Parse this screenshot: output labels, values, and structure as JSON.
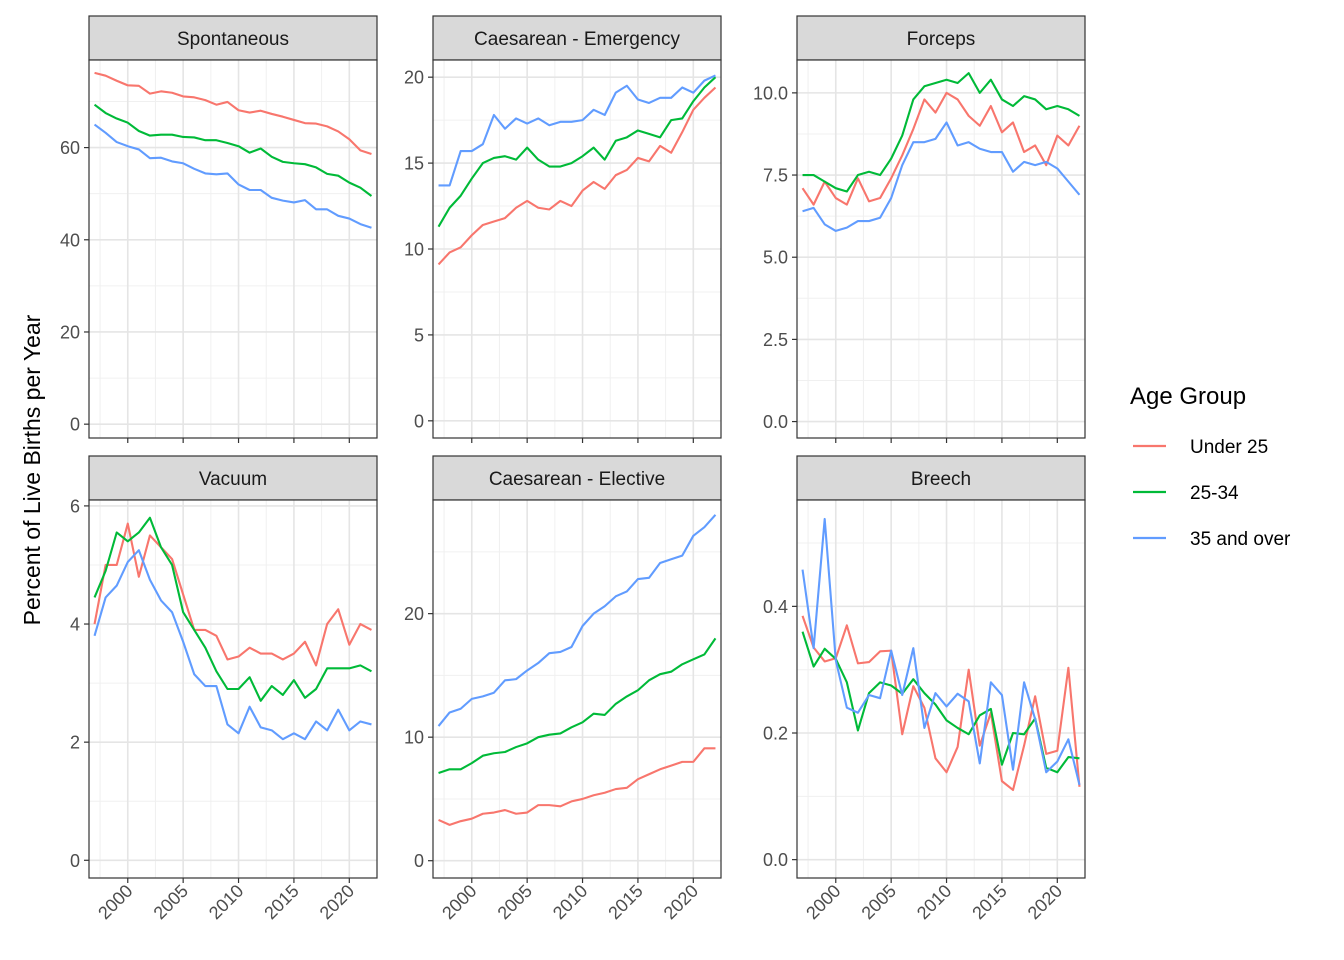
{
  "chart_data": {
    "type": "line",
    "ylabel": "Percent of Live Births per Year",
    "xlim": [
      1996.5,
      2022.5
    ],
    "x_ticks": [
      2000,
      2005,
      2010,
      2015,
      2020
    ],
    "legend": {
      "title": "Age Group",
      "placement": "right"
    },
    "colors": {
      "Under 25": "#F8766D",
      "25-34": "#00BA38",
      "35 and over": "#619CFF"
    },
    "panels": [
      {
        "title": "Spontaneous",
        "ylim": [
          -3,
          79
        ],
        "y_ticks": [
          0,
          20,
          40,
          60
        ],
        "years": [
          1997,
          1998,
          1999,
          2000,
          2001,
          2002,
          2003,
          2004,
          2005,
          2006,
          2007,
          2008,
          2009,
          2010,
          2011,
          2012,
          2013,
          2014,
          2015,
          2016,
          2017,
          2018,
          2019,
          2020,
          2021,
          2022
        ],
        "series": [
          {
            "name": "Under 25",
            "values": [
              76.2,
              75.6,
              74.5,
              73.5,
              73.4,
              71.7,
              72.2,
              71.9,
              71.1,
              70.9,
              70.3,
              69.3,
              69.9,
              68.1,
              67.6,
              68.0,
              67.3,
              66.7,
              66.0,
              65.3,
              65.2,
              64.6,
              63.5,
              61.8,
              59.4,
              58.6
            ]
          },
          {
            "name": "25-34",
            "values": [
              69.3,
              67.5,
              66.3,
              65.4,
              63.6,
              62.6,
              62.8,
              62.8,
              62.3,
              62.2,
              61.6,
              61.6,
              61.0,
              60.3,
              58.9,
              59.8,
              58.0,
              56.9,
              56.6,
              56.4,
              55.7,
              54.3,
              53.9,
              52.4,
              51.3,
              49.5
            ]
          },
          {
            "name": "35 and over",
            "values": [
              65.0,
              63.2,
              61.2,
              60.3,
              59.6,
              57.7,
              57.8,
              57.0,
              56.6,
              55.4,
              54.4,
              54.2,
              54.4,
              52.0,
              50.8,
              50.8,
              49.1,
              48.5,
              48.1,
              48.6,
              46.6,
              46.6,
              45.2,
              44.6,
              43.4,
              42.6
            ]
          }
        ]
      },
      {
        "title": "Caesarean - Emergency",
        "ylim": [
          -1,
          21
        ],
        "y_ticks": [
          0,
          5,
          10,
          15,
          20
        ],
        "years": [
          1997,
          1998,
          1999,
          2000,
          2001,
          2002,
          2003,
          2004,
          2005,
          2006,
          2007,
          2008,
          2009,
          2010,
          2011,
          2012,
          2013,
          2014,
          2015,
          2016,
          2017,
          2018,
          2019,
          2020,
          2021,
          2022
        ],
        "series": [
          {
            "name": "Under 25",
            "values": [
              9.1,
              9.8,
              10.1,
              10.8,
              11.4,
              11.6,
              11.8,
              12.4,
              12.8,
              12.4,
              12.3,
              12.8,
              12.5,
              13.4,
              13.9,
              13.5,
              14.3,
              14.6,
              15.3,
              15.1,
              16.0,
              15.6,
              16.8,
              18.1,
              18.8,
              19.4
            ]
          },
          {
            "name": "25-34",
            "values": [
              11.3,
              12.4,
              13.1,
              14.1,
              15.0,
              15.3,
              15.4,
              15.2,
              15.9,
              15.2,
              14.8,
              14.8,
              15.0,
              15.4,
              15.9,
              15.2,
              16.3,
              16.5,
              16.9,
              16.7,
              16.5,
              17.5,
              17.6,
              18.6,
              19.4,
              20.0
            ]
          },
          {
            "name": "35 and over",
            "values": [
              13.7,
              13.7,
              15.7,
              15.7,
              16.1,
              17.8,
              17.0,
              17.6,
              17.3,
              17.6,
              17.2,
              17.4,
              17.4,
              17.5,
              18.1,
              17.8,
              19.1,
              19.5,
              18.7,
              18.5,
              18.8,
              18.8,
              19.4,
              19.1,
              19.8,
              20.1
            ]
          }
        ]
      },
      {
        "title": "Forceps",
        "ylim": [
          -0.5,
          11.0
        ],
        "y_ticks": [
          0.0,
          2.5,
          5.0,
          7.5,
          10.0
        ],
        "y_tick_labels": [
          "0.0",
          "2.5",
          "5.0",
          "7.5",
          "10.0"
        ],
        "years": [
          1997,
          1998,
          1999,
          2000,
          2001,
          2002,
          2003,
          2004,
          2005,
          2006,
          2007,
          2008,
          2009,
          2010,
          2011,
          2012,
          2013,
          2014,
          2015,
          2016,
          2017,
          2018,
          2019,
          2020,
          2021,
          2022
        ],
        "series": [
          {
            "name": "Under 25",
            "values": [
              7.1,
              6.6,
              7.3,
              6.8,
              6.6,
              7.4,
              6.7,
              6.8,
              7.4,
              8.1,
              8.9,
              9.8,
              9.4,
              10.0,
              9.8,
              9.3,
              9.0,
              9.6,
              8.8,
              9.1,
              8.2,
              8.4,
              7.8,
              8.7,
              8.4,
              9.0
            ]
          },
          {
            "name": "25-34",
            "values": [
              7.5,
              7.5,
              7.3,
              7.1,
              7.0,
              7.5,
              7.6,
              7.5,
              8.0,
              8.7,
              9.8,
              10.2,
              10.3,
              10.4,
              10.3,
              10.6,
              10.0,
              10.4,
              9.8,
              9.6,
              9.9,
              9.8,
              9.5,
              9.6,
              9.5,
              9.3
            ]
          },
          {
            "name": "35 and over",
            "values": [
              6.4,
              6.5,
              6.0,
              5.8,
              5.9,
              6.1,
              6.1,
              6.2,
              6.8,
              7.8,
              8.5,
              8.5,
              8.6,
              9.1,
              8.4,
              8.5,
              8.3,
              8.2,
              8.2,
              7.6,
              7.9,
              7.8,
              7.9,
              7.7,
              7.3,
              6.9
            ]
          }
        ]
      },
      {
        "title": "Vacuum",
        "ylim": [
          -0.3,
          6.1
        ],
        "y_ticks": [
          0,
          2,
          4,
          6
        ],
        "years": [
          1997,
          1998,
          1999,
          2000,
          2001,
          2002,
          2003,
          2004,
          2005,
          2006,
          2007,
          2008,
          2009,
          2010,
          2011,
          2012,
          2013,
          2014,
          2015,
          2016,
          2017,
          2018,
          2019,
          2020,
          2021,
          2022
        ],
        "series": [
          {
            "name": "Under 25",
            "values": [
              4.0,
              5.0,
              5.0,
              5.7,
              4.8,
              5.5,
              5.3,
              5.1,
              4.5,
              3.9,
              3.9,
              3.8,
              3.4,
              3.45,
              3.6,
              3.5,
              3.5,
              3.4,
              3.5,
              3.7,
              3.3,
              4.0,
              4.25,
              3.65,
              4.0,
              3.9
            ]
          },
          {
            "name": "25-34",
            "values": [
              4.45,
              4.9,
              5.55,
              5.4,
              5.55,
              5.8,
              5.3,
              5.0,
              4.2,
              3.9,
              3.6,
              3.2,
              2.9,
              2.9,
              3.1,
              2.7,
              2.95,
              2.8,
              3.05,
              2.75,
              2.9,
              3.25,
              3.25,
              3.25,
              3.3,
              3.2
            ]
          },
          {
            "name": "35 and over",
            "values": [
              3.8,
              4.45,
              4.65,
              5.05,
              5.25,
              4.75,
              4.4,
              4.2,
              3.7,
              3.15,
              2.95,
              2.95,
              2.3,
              2.15,
              2.6,
              2.25,
              2.2,
              2.05,
              2.15,
              2.05,
              2.35,
              2.2,
              2.55,
              2.2,
              2.35,
              2.3
            ]
          }
        ]
      },
      {
        "title": "Caesarean - Elective",
        "ylim": [
          -1.4,
          29.2
        ],
        "y_ticks": [
          0,
          10,
          20
        ],
        "years": [
          1997,
          1998,
          1999,
          2000,
          2001,
          2002,
          2003,
          2004,
          2005,
          2006,
          2007,
          2008,
          2009,
          2010,
          2011,
          2012,
          2013,
          2014,
          2015,
          2016,
          2017,
          2018,
          2019,
          2020,
          2021,
          2022
        ],
        "series": [
          {
            "name": "Under 25",
            "values": [
              3.3,
              2.9,
              3.2,
              3.4,
              3.8,
              3.9,
              4.1,
              3.8,
              3.9,
              4.5,
              4.5,
              4.4,
              4.8,
              5.0,
              5.3,
              5.5,
              5.8,
              5.9,
              6.6,
              7.0,
              7.4,
              7.7,
              8.0,
              8.0,
              9.1,
              9.1
            ]
          },
          {
            "name": "25-34",
            "values": [
              7.1,
              7.4,
              7.4,
              7.9,
              8.5,
              8.7,
              8.8,
              9.2,
              9.5,
              10.0,
              10.2,
              10.3,
              10.8,
              11.2,
              11.9,
              11.8,
              12.7,
              13.3,
              13.8,
              14.6,
              15.1,
              15.3,
              15.9,
              16.3,
              16.7,
              18.0
            ]
          },
          {
            "name": "35 and over",
            "values": [
              10.9,
              12.0,
              12.3,
              13.1,
              13.3,
              13.6,
              14.6,
              14.7,
              15.4,
              16.0,
              16.8,
              16.9,
              17.3,
              19.0,
              20.0,
              20.6,
              21.4,
              21.8,
              22.8,
              22.9,
              24.1,
              24.4,
              24.7,
              26.3,
              27.0,
              28.0
            ]
          }
        ]
      },
      {
        "title": "Breech",
        "ylim": [
          -0.029,
          0.568
        ],
        "y_ticks": [
          0.0,
          0.2,
          0.4
        ],
        "y_tick_labels": [
          "0.0",
          "0.2",
          "0.4"
        ],
        "years": [
          1997,
          1998,
          1999,
          2000,
          2001,
          2002,
          2003,
          2004,
          2005,
          2006,
          2007,
          2008,
          2009,
          2010,
          2011,
          2012,
          2013,
          2014,
          2015,
          2016,
          2017,
          2018,
          2019,
          2020,
          2021,
          2022
        ],
        "series": [
          {
            "name": "Under 25",
            "values": [
              0.385,
              0.335,
              0.313,
              0.318,
              0.37,
              0.31,
              0.312,
              0.329,
              0.33,
              0.198,
              0.274,
              0.24,
              0.16,
              0.138,
              0.178,
              0.3,
              0.18,
              0.232,
              0.124,
              0.11,
              0.18,
              0.258,
              0.167,
              0.172,
              0.303,
              0.115
            ]
          },
          {
            "name": "25-34",
            "values": [
              0.36,
              0.305,
              0.333,
              0.317,
              0.28,
              0.204,
              0.263,
              0.28,
              0.275,
              0.262,
              0.285,
              0.263,
              0.245,
              0.22,
              0.208,
              0.198,
              0.228,
              0.238,
              0.15,
              0.2,
              0.198,
              0.223,
              0.145,
              0.138,
              0.162,
              0.16
            ]
          },
          {
            "name": "35 and over",
            "values": [
              0.458,
              0.334,
              0.538,
              0.315,
              0.24,
              0.232,
              0.26,
              0.255,
              0.33,
              0.26,
              0.334,
              0.208,
              0.263,
              0.242,
              0.262,
              0.25,
              0.152,
              0.28,
              0.26,
              0.142,
              0.28,
              0.222,
              0.138,
              0.155,
              0.19,
              0.118
            ]
          }
        ]
      }
    ]
  }
}
